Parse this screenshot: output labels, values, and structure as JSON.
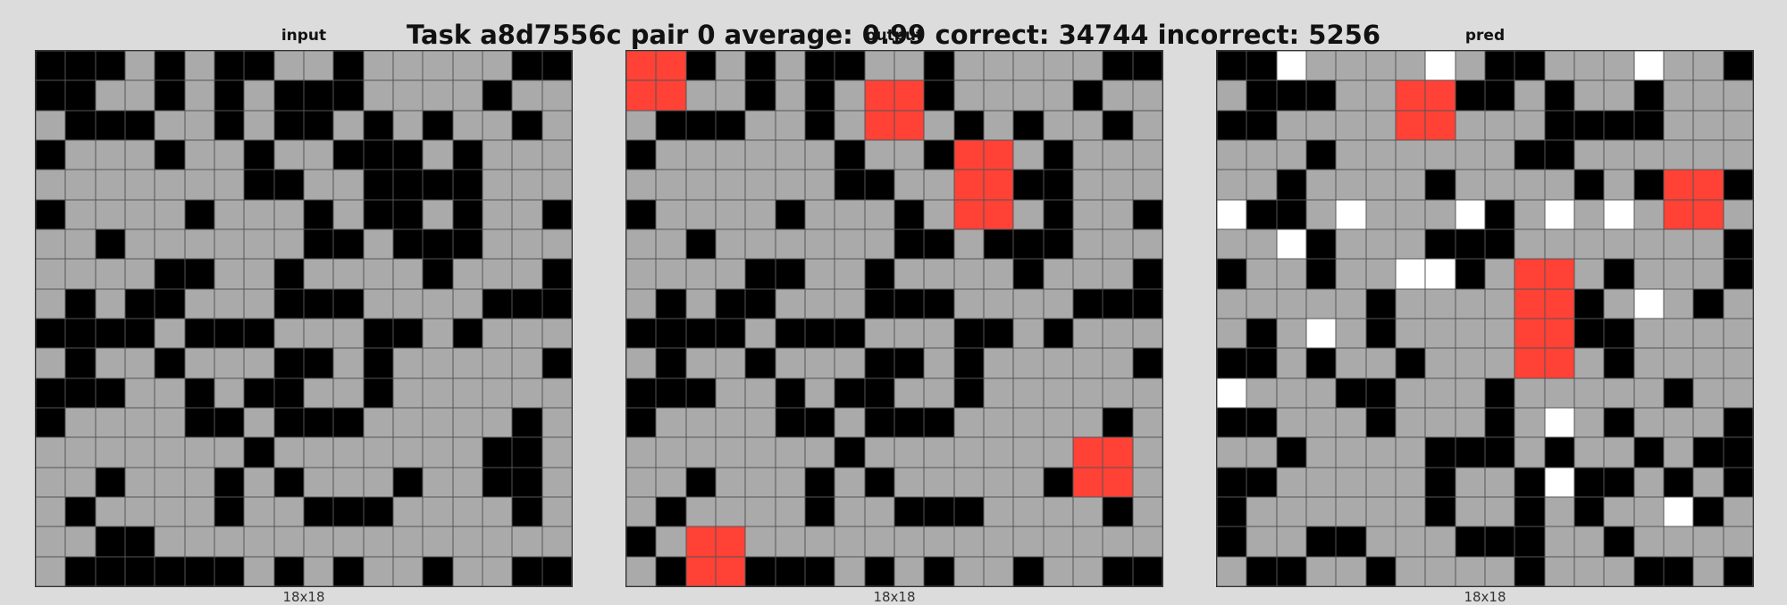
{
  "title": "Task a8d7556c pair 0 average: 0.99 correct: 34744 incorrect: 5256",
  "palette": {
    "0": "#000000",
    "1": "#ffffff",
    "2": "#ff4136",
    "5": "#aaaaaa"
  },
  "panels": [
    {
      "label": "input",
      "size": "18x18",
      "grid": [
        [
          0,
          0,
          0,
          5,
          0,
          5,
          0,
          0,
          5,
          5,
          0,
          5,
          5,
          5,
          5,
          5,
          0,
          0
        ],
        [
          0,
          0,
          5,
          5,
          0,
          5,
          0,
          5,
          0,
          0,
          0,
          5,
          5,
          5,
          5,
          0,
          5,
          5
        ],
        [
          5,
          0,
          0,
          0,
          5,
          5,
          0,
          5,
          0,
          0,
          5,
          0,
          5,
          0,
          5,
          5,
          0,
          5
        ],
        [
          0,
          5,
          5,
          5,
          0,
          5,
          5,
          0,
          5,
          5,
          0,
          0,
          0,
          5,
          0,
          5,
          5,
          5
        ],
        [
          5,
          5,
          5,
          5,
          5,
          5,
          5,
          0,
          0,
          5,
          5,
          0,
          0,
          0,
          0,
          5,
          5,
          5
        ],
        [
          0,
          5,
          5,
          5,
          5,
          0,
          5,
          5,
          5,
          0,
          5,
          0,
          0,
          5,
          0,
          5,
          5,
          0
        ],
        [
          5,
          5,
          0,
          5,
          5,
          5,
          5,
          5,
          5,
          0,
          0,
          5,
          0,
          0,
          0,
          5,
          5,
          5
        ],
        [
          5,
          5,
          5,
          5,
          0,
          0,
          5,
          5,
          0,
          5,
          5,
          5,
          5,
          0,
          5,
          5,
          5,
          0
        ],
        [
          5,
          0,
          5,
          0,
          0,
          5,
          5,
          5,
          0,
          0,
          0,
          5,
          5,
          5,
          5,
          0,
          0,
          0
        ],
        [
          0,
          0,
          0,
          0,
          5,
          0,
          0,
          0,
          5,
          5,
          5,
          0,
          0,
          5,
          0,
          5,
          5,
          5
        ],
        [
          5,
          0,
          5,
          5,
          0,
          5,
          5,
          5,
          0,
          0,
          5,
          0,
          5,
          5,
          5,
          5,
          5,
          0
        ],
        [
          0,
          0,
          0,
          5,
          5,
          0,
          5,
          0,
          0,
          5,
          5,
          0,
          5,
          5,
          5,
          5,
          5,
          5
        ],
        [
          0,
          5,
          5,
          5,
          5,
          0,
          0,
          5,
          0,
          0,
          0,
          5,
          5,
          5,
          5,
          5,
          0,
          5
        ],
        [
          5,
          5,
          5,
          5,
          5,
          5,
          5,
          0,
          5,
          5,
          5,
          5,
          5,
          5,
          5,
          0,
          0,
          5
        ],
        [
          5,
          5,
          0,
          5,
          5,
          5,
          0,
          5,
          0,
          5,
          5,
          5,
          0,
          5,
          5,
          0,
          0,
          5
        ],
        [
          5,
          0,
          5,
          5,
          5,
          5,
          0,
          5,
          5,
          0,
          0,
          0,
          5,
          5,
          5,
          5,
          0,
          5
        ],
        [
          5,
          5,
          0,
          0,
          5,
          5,
          5,
          5,
          5,
          5,
          5,
          5,
          5,
          5,
          5,
          5,
          5,
          5
        ],
        [
          5,
          0,
          0,
          0,
          0,
          0,
          0,
          5,
          0,
          5,
          0,
          5,
          5,
          0,
          5,
          5,
          0,
          0
        ]
      ]
    },
    {
      "label": "output",
      "size": "18x18",
      "grid": [
        [
          2,
          2,
          0,
          5,
          0,
          5,
          0,
          0,
          5,
          5,
          0,
          5,
          5,
          5,
          5,
          5,
          0,
          0
        ],
        [
          2,
          2,
          5,
          5,
          0,
          5,
          0,
          5,
          2,
          2,
          0,
          5,
          5,
          5,
          5,
          0,
          5,
          5
        ],
        [
          5,
          0,
          0,
          0,
          5,
          5,
          0,
          5,
          2,
          2,
          5,
          0,
          5,
          0,
          5,
          5,
          0,
          5
        ],
        [
          0,
          5,
          5,
          5,
          5,
          5,
          5,
          0,
          5,
          5,
          0,
          2,
          2,
          5,
          0,
          5,
          5,
          5
        ],
        [
          5,
          5,
          5,
          5,
          5,
          5,
          5,
          0,
          0,
          5,
          5,
          2,
          2,
          0,
          0,
          5,
          5,
          5
        ],
        [
          0,
          5,
          5,
          5,
          5,
          0,
          5,
          5,
          5,
          0,
          5,
          2,
          2,
          5,
          0,
          5,
          5,
          0
        ],
        [
          5,
          5,
          0,
          5,
          5,
          5,
          5,
          5,
          5,
          0,
          0,
          5,
          0,
          0,
          0,
          5,
          5,
          5
        ],
        [
          5,
          5,
          5,
          5,
          0,
          0,
          5,
          5,
          0,
          5,
          5,
          5,
          5,
          0,
          5,
          5,
          5,
          0
        ],
        [
          5,
          0,
          5,
          0,
          0,
          5,
          5,
          5,
          0,
          0,
          0,
          5,
          5,
          5,
          5,
          0,
          0,
          0
        ],
        [
          0,
          0,
          0,
          0,
          5,
          0,
          0,
          0,
          5,
          5,
          5,
          0,
          0,
          5,
          0,
          5,
          5,
          5
        ],
        [
          5,
          0,
          5,
          5,
          0,
          5,
          5,
          5,
          0,
          0,
          5,
          0,
          5,
          5,
          5,
          5,
          5,
          0
        ],
        [
          0,
          0,
          0,
          5,
          5,
          0,
          5,
          0,
          0,
          5,
          5,
          0,
          5,
          5,
          5,
          5,
          5,
          5
        ],
        [
          0,
          5,
          5,
          5,
          5,
          0,
          0,
          5,
          0,
          0,
          0,
          5,
          5,
          5,
          5,
          5,
          0,
          5
        ],
        [
          5,
          5,
          5,
          5,
          5,
          5,
          5,
          0,
          5,
          5,
          5,
          5,
          5,
          5,
          5,
          2,
          2,
          5
        ],
        [
          5,
          5,
          0,
          5,
          5,
          5,
          0,
          5,
          0,
          5,
          5,
          5,
          5,
          5,
          0,
          2,
          2,
          5
        ],
        [
          5,
          0,
          5,
          5,
          5,
          5,
          0,
          5,
          5,
          0,
          0,
          0,
          5,
          5,
          5,
          5,
          0,
          5
        ],
        [
          0,
          5,
          2,
          2,
          5,
          5,
          5,
          5,
          5,
          5,
          5,
          5,
          5,
          5,
          5,
          5,
          5,
          5
        ],
        [
          5,
          0,
          2,
          2,
          0,
          0,
          0,
          5,
          0,
          5,
          0,
          5,
          5,
          0,
          5,
          5,
          0,
          0
        ]
      ]
    },
    {
      "label": "pred",
      "size": "18x18",
      "grid": [
        [
          0,
          0,
          1,
          5,
          5,
          5,
          5,
          1,
          5,
          0,
          0,
          5,
          5,
          5,
          1,
          5,
          5,
          0
        ],
        [
          5,
          0,
          0,
          0,
          5,
          5,
          2,
          2,
          0,
          0,
          5,
          0,
          5,
          5,
          0,
          5,
          5,
          5
        ],
        [
          0,
          0,
          5,
          5,
          5,
          5,
          2,
          2,
          5,
          5,
          5,
          0,
          0,
          0,
          0,
          5,
          5,
          5
        ],
        [
          5,
          5,
          5,
          0,
          5,
          5,
          5,
          5,
          5,
          5,
          0,
          0,
          5,
          5,
          5,
          5,
          5,
          5
        ],
        [
          5,
          5,
          0,
          5,
          5,
          5,
          5,
          0,
          5,
          5,
          5,
          5,
          0,
          5,
          0,
          2,
          2,
          0
        ],
        [
          1,
          0,
          0,
          5,
          1,
          5,
          5,
          5,
          1,
          0,
          5,
          1,
          5,
          1,
          5,
          2,
          2,
          5
        ],
        [
          5,
          5,
          1,
          0,
          5,
          5,
          5,
          0,
          0,
          0,
          5,
          5,
          5,
          5,
          5,
          5,
          5,
          0
        ],
        [
          0,
          5,
          5,
          0,
          5,
          5,
          1,
          1,
          0,
          5,
          2,
          2,
          5,
          0,
          5,
          5,
          5,
          0
        ],
        [
          5,
          5,
          5,
          5,
          5,
          0,
          5,
          5,
          5,
          5,
          2,
          2,
          0,
          5,
          1,
          5,
          0,
          5
        ],
        [
          5,
          0,
          5,
          1,
          5,
          0,
          5,
          5,
          5,
          5,
          2,
          2,
          0,
          0,
          5,
          5,
          5,
          5
        ],
        [
          0,
          0,
          5,
          0,
          5,
          5,
          0,
          5,
          5,
          5,
          2,
          2,
          5,
          0,
          5,
          5,
          5,
          5
        ],
        [
          1,
          5,
          5,
          5,
          0,
          0,
          5,
          5,
          5,
          0,
          5,
          5,
          5,
          5,
          5,
          0,
          5,
          5
        ],
        [
          0,
          0,
          5,
          5,
          5,
          0,
          5,
          5,
          5,
          0,
          5,
          1,
          5,
          0,
          5,
          5,
          5,
          0
        ],
        [
          5,
          5,
          0,
          5,
          5,
          5,
          5,
          0,
          0,
          0,
          5,
          0,
          5,
          5,
          0,
          5,
          0,
          0
        ],
        [
          0,
          0,
          5,
          5,
          5,
          5,
          5,
          0,
          5,
          5,
          0,
          1,
          0,
          0,
          5,
          0,
          5,
          0
        ],
        [
          0,
          5,
          5,
          5,
          5,
          5,
          5,
          0,
          5,
          5,
          0,
          5,
          0,
          5,
          5,
          1,
          0,
          5
        ],
        [
          0,
          5,
          5,
          0,
          0,
          5,
          5,
          5,
          0,
          0,
          0,
          5,
          5,
          0,
          5,
          5,
          5,
          5
        ],
        [
          5,
          0,
          0,
          5,
          5,
          0,
          5,
          5,
          5,
          5,
          0,
          5,
          5,
          5,
          0,
          0,
          5,
          0
        ]
      ]
    }
  ]
}
